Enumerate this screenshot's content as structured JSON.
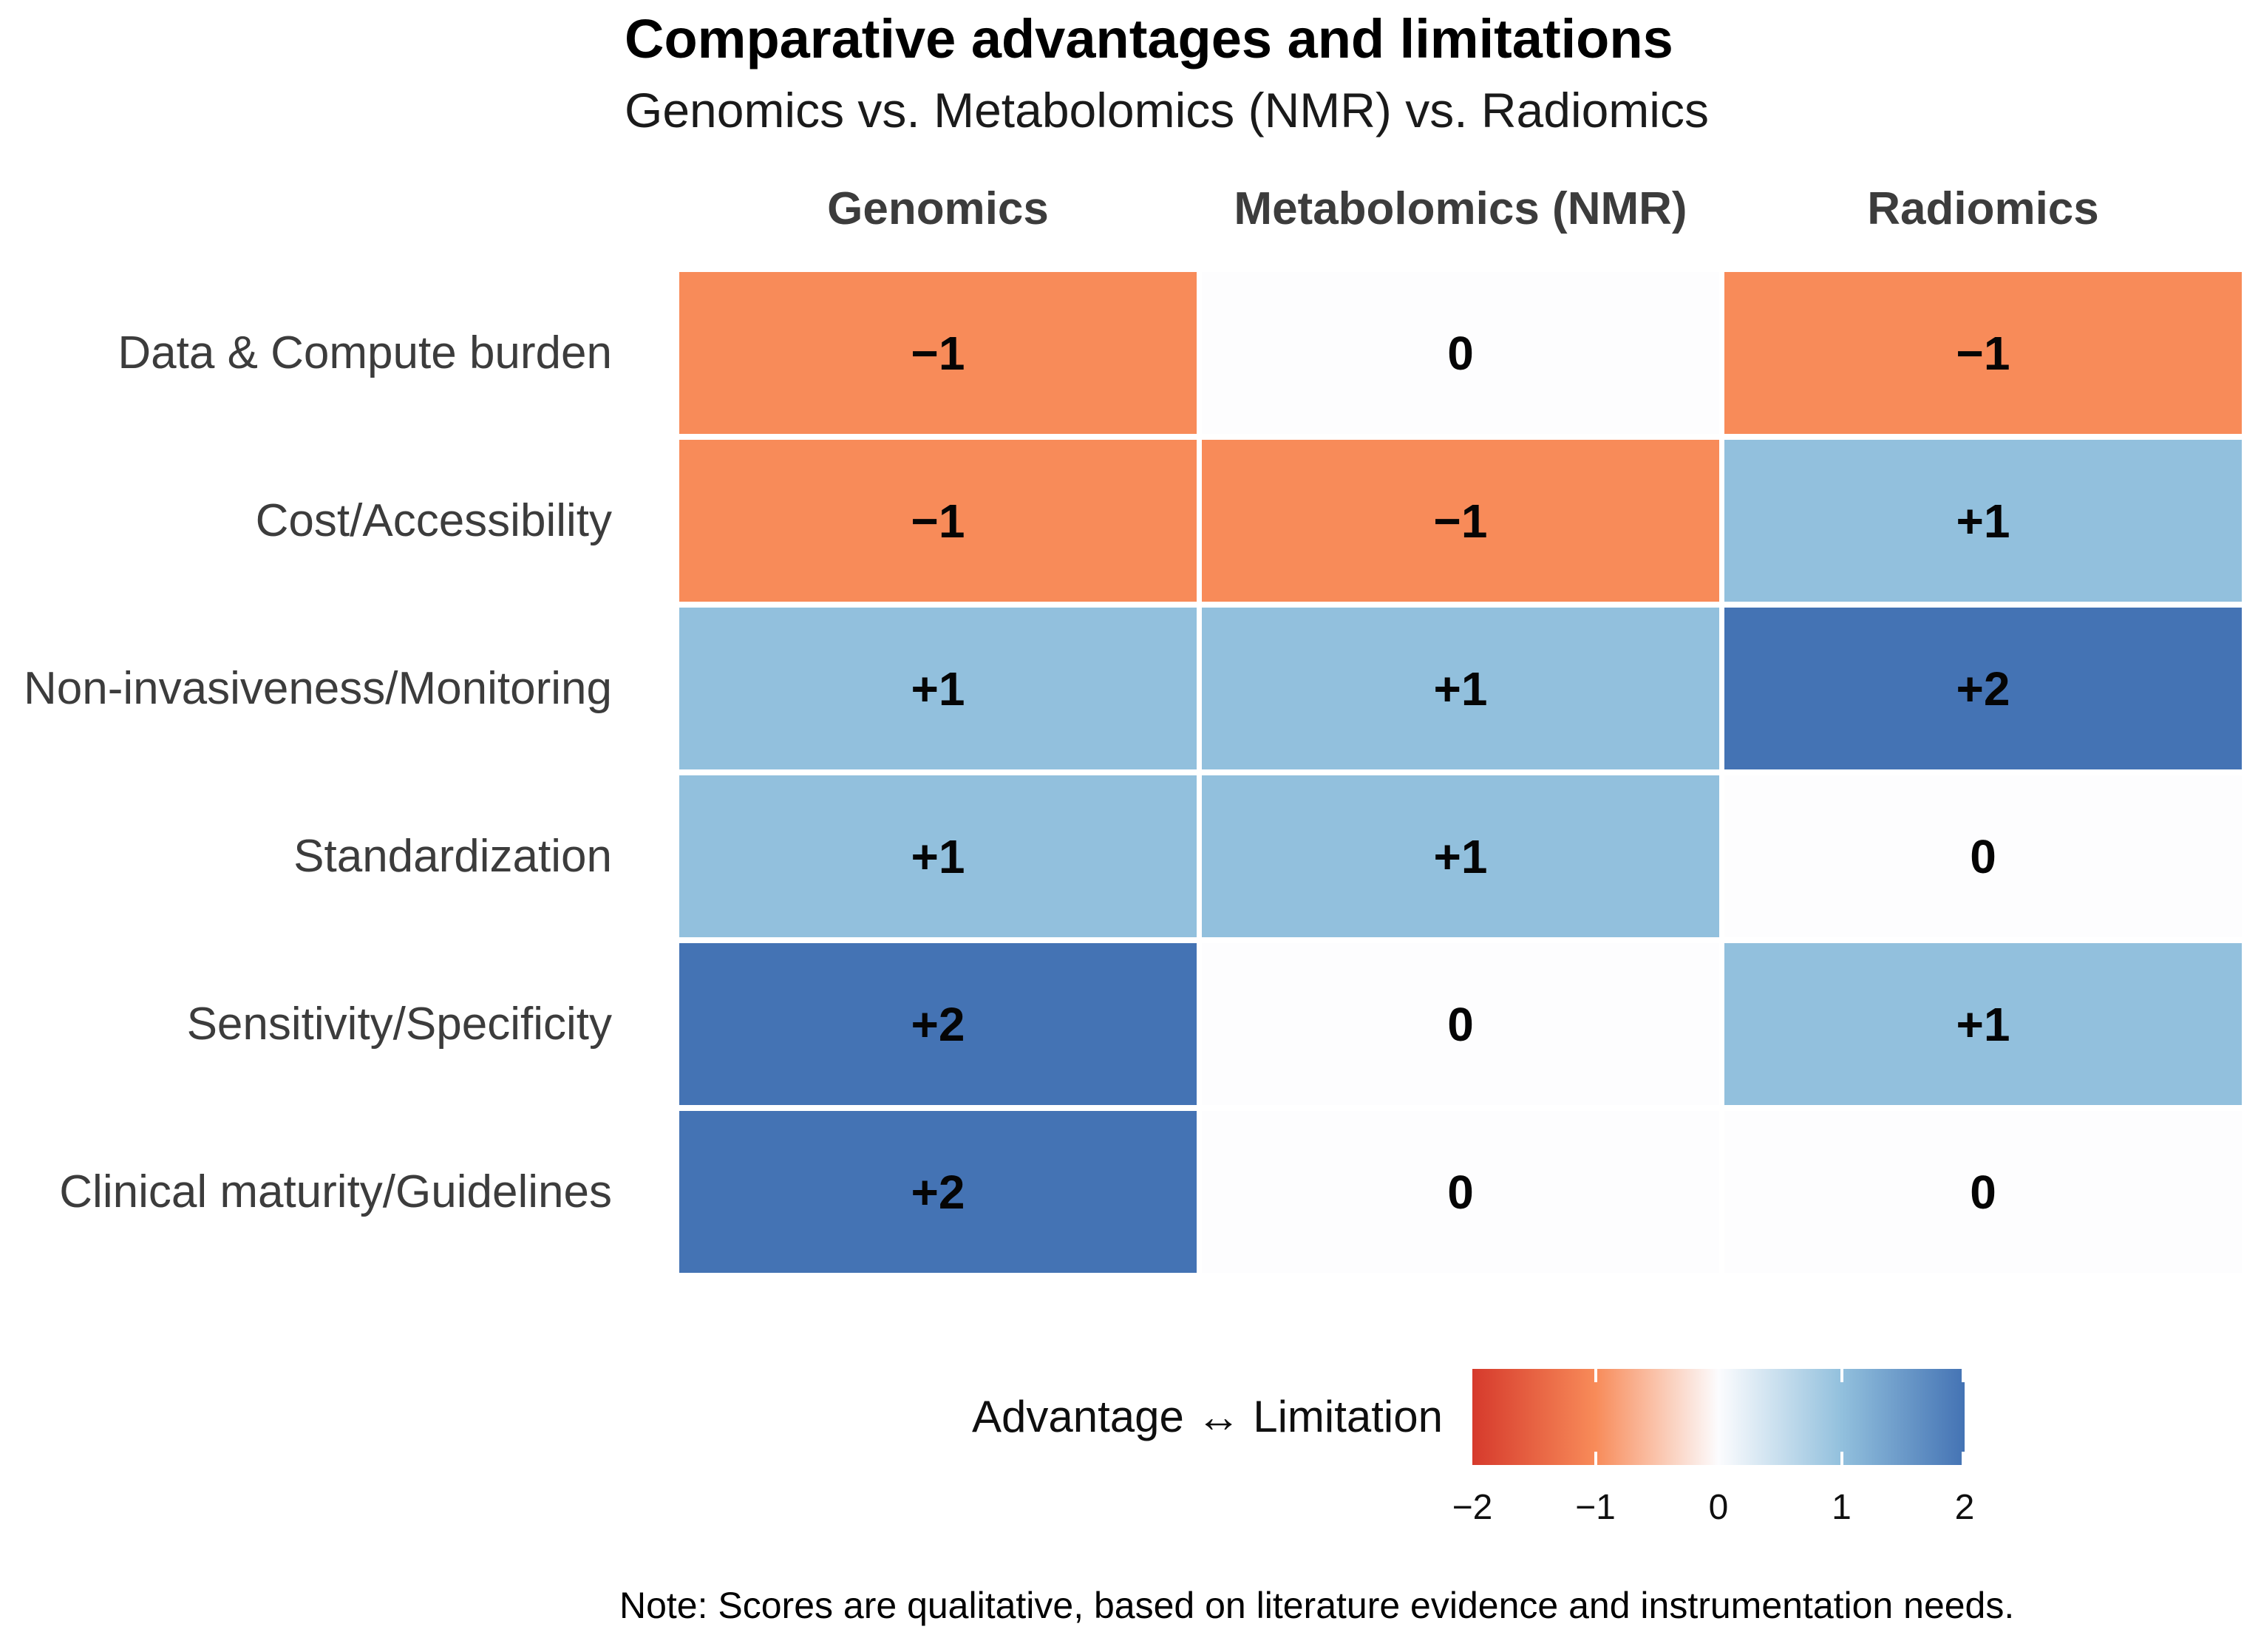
{
  "title": "Comparative advantages and limitations",
  "subtitle": "Genomics vs. Metabolomics (NMR) vs. Radiomics",
  "note": "Note: Scores are qualitative, based on literature evidence and instrumentation needs.",
  "legend": {
    "label": "Advantage ↔ Limitation",
    "tick_labels": [
      "−2",
      "−1",
      "0",
      "1",
      "2"
    ]
  },
  "colors": {
    "score_fill": {
      "-2": "#D63A2C",
      "-1": "#F88B59",
      "0": "#FDFDFE",
      "1": "#92C0DD",
      "2": "#4473B4"
    },
    "gradient_low": "#D63A2C",
    "gradient_mid": "#FCFCFE",
    "gradient_high": "#4473B4",
    "header_text": "#3c3c3c",
    "cell_text": "#050505"
  },
  "chart_data": {
    "type": "heatmap",
    "title": "Comparative advantages and limitations",
    "subtitle": "Genomics vs. Metabolomics (NMR) vs. Radiomics",
    "columns": [
      "Genomics",
      "Metabolomics (NMR)",
      "Radiomics"
    ],
    "rows": [
      "Data & Compute burden",
      "Cost/Accessibility",
      "Non-invasiveness/Monitoring",
      "Standardization",
      "Sensitivity/Specificity",
      "Clinical maturity/Guidelines"
    ],
    "values": [
      [
        -1,
        0,
        -1
      ],
      [
        -1,
        -1,
        1
      ],
      [
        1,
        1,
        2
      ],
      [
        1,
        1,
        0
      ],
      [
        2,
        0,
        1
      ],
      [
        2,
        0,
        0
      ]
    ],
    "cell_labels": [
      [
        "−1",
        "0",
        "−1"
      ],
      [
        "−1",
        "−1",
        "+1"
      ],
      [
        "+1",
        "+1",
        "+2"
      ],
      [
        "+1",
        "+1",
        "0"
      ],
      [
        "+2",
        "0",
        "+1"
      ],
      [
        "+2",
        "0",
        "0"
      ]
    ],
    "colorbar": {
      "label": "Advantage ↔ Limitation",
      "range": [
        -2,
        2
      ],
      "breaks": [
        -2,
        -1,
        0,
        1,
        2
      ],
      "orientation": "horizontal",
      "position": "bottom-right"
    },
    "note": "Note: Scores are qualitative, based on literature evidence and instrumentation needs."
  }
}
